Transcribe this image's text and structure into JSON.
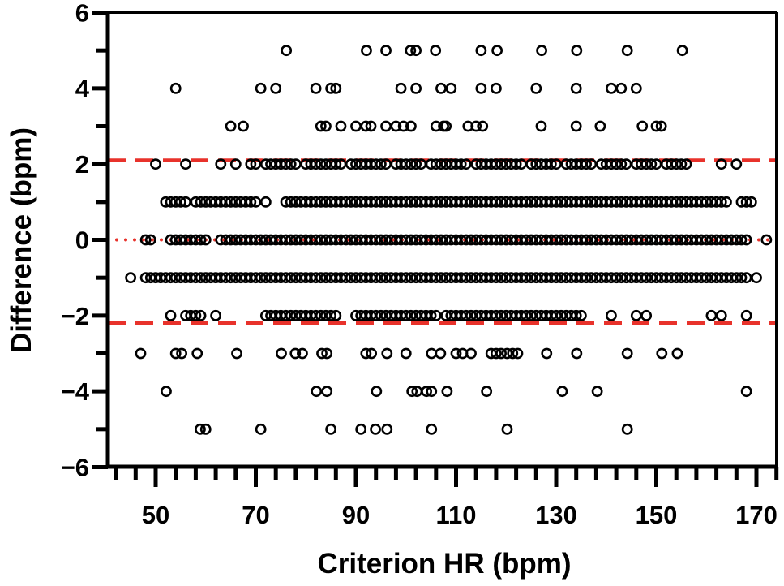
{
  "chart_data": {
    "type": "scatter",
    "title": "",
    "xlabel": "Criterion HR (bpm)",
    "ylabel": "Difference (bpm)",
    "xlim": [
      40.5,
      174
    ],
    "ylim": [
      -6,
      6
    ],
    "x_ticks": [
      50,
      70,
      90,
      110,
      130,
      150,
      170
    ],
    "x_tick_labels": [
      "50",
      "70",
      "90",
      "110",
      "130",
      "150",
      "170"
    ],
    "x_minor_tick_step": 4,
    "y_ticks": [
      -6,
      -4,
      -2,
      0,
      2,
      4,
      6
    ],
    "y_tick_labels": [
      "−6",
      "−4",
      "−2",
      "0",
      "2",
      "4",
      "6"
    ],
    "y_minor_tick_step": 1,
    "grid": false,
    "reference_lines": [
      {
        "name": "upper-limit-of-agreement",
        "y": 2.1,
        "style": "dashed",
        "color": "#e8322b"
      },
      {
        "name": "mean-bias",
        "y": 0,
        "style": "dotted",
        "color": "#e8322b"
      },
      {
        "name": "lower-limit-of-agreement",
        "y": -2.2,
        "style": "dashed",
        "color": "#e8322b"
      }
    ],
    "marker": {
      "shape": "open-circle",
      "color": "#000000"
    },
    "series": [
      {
        "difference": 5,
        "x": [
          76.1,
          92.1,
          96,
          100.9,
          102,
          105.9,
          115,
          118.2,
          127.1,
          134.1,
          144.2,
          155.2
        ]
      },
      {
        "difference": 4,
        "x": [
          54,
          71,
          74,
          82,
          85,
          86,
          99,
          102,
          107,
          109,
          115,
          118,
          126,
          134,
          141,
          143,
          146
        ]
      },
      {
        "difference": 3,
        "x": [
          65,
          67.5,
          83,
          84,
          87,
          90,
          92,
          93,
          96,
          98,
          99.5,
          101,
          106,
          107.5,
          108,
          112.4,
          114,
          115.3,
          127,
          134,
          138.8,
          147.2,
          150,
          151
        ]
      },
      {
        "difference": 2,
        "x": [
          50,
          56,
          63,
          66,
          69,
          70,
          72,
          73,
          74,
          75,
          76,
          77,
          78,
          80,
          81,
          82,
          83,
          84,
          85,
          86,
          87,
          89,
          90,
          91,
          92,
          93,
          94,
          95,
          96,
          98,
          99,
          100,
          101,
          102,
          103,
          105,
          106,
          107,
          108,
          109,
          110,
          111,
          112,
          114,
          115,
          116,
          117,
          118,
          119,
          120,
          121,
          122,
          123,
          125,
          126,
          127,
          128,
          129,
          130,
          132,
          133,
          134,
          135,
          136,
          137,
          139,
          140,
          141,
          142,
          143,
          144,
          146,
          147,
          148,
          149,
          150,
          152,
          153,
          154,
          155,
          156,
          163,
          166
        ]
      },
      {
        "difference": 1,
        "x": [
          52,
          53,
          54,
          55,
          56,
          58,
          59,
          60,
          61,
          62,
          63,
          64,
          65,
          66,
          67,
          68,
          69,
          70,
          72,
          76,
          77,
          78,
          79,
          80,
          81,
          82,
          83,
          84,
          85,
          86,
          87,
          88,
          89,
          90,
          91,
          92,
          93,
          94,
          95,
          96,
          97,
          98,
          99,
          100,
          101,
          102,
          103,
          104,
          105,
          106,
          107,
          108,
          109,
          110,
          111,
          112,
          113,
          114,
          115,
          116,
          117,
          118,
          119,
          120,
          121,
          122,
          123,
          124,
          125,
          126,
          127,
          128,
          129,
          130,
          131,
          132,
          133,
          134,
          135,
          136,
          137,
          138,
          139,
          140,
          141,
          142,
          143,
          144,
          145,
          146,
          147,
          148,
          149,
          150,
          151,
          152,
          153,
          154,
          155,
          156,
          157,
          158,
          159,
          160,
          161,
          162,
          163,
          164,
          167,
          168,
          169
        ]
      },
      {
        "difference": 0,
        "x": [
          48,
          49,
          53,
          54,
          55,
          56,
          57,
          58,
          59,
          60,
          63,
          64,
          65,
          66,
          67,
          68,
          69,
          70,
          71,
          72,
          73,
          74,
          75,
          76,
          77,
          78,
          79,
          80,
          81,
          82,
          83,
          84,
          85,
          86,
          87,
          88,
          89,
          90,
          91,
          92,
          93,
          94,
          95,
          96,
          97,
          98,
          99,
          100,
          101,
          102,
          103,
          104,
          105,
          106,
          107,
          108,
          109,
          110,
          111,
          112,
          113,
          114,
          115,
          116,
          117,
          118,
          119,
          120,
          121,
          122,
          123,
          124,
          125,
          126,
          127,
          128,
          129,
          130,
          131,
          132,
          133,
          134,
          135,
          136,
          137,
          138,
          139,
          140,
          141,
          142,
          143,
          144,
          145,
          146,
          147,
          148,
          149,
          150,
          151,
          152,
          153,
          154,
          155,
          156,
          157,
          158,
          159,
          160,
          161,
          162,
          163,
          164,
          165,
          166,
          167,
          168,
          172
        ]
      },
      {
        "difference": -1,
        "x": [
          45,
          48,
          49,
          50,
          51,
          52,
          53,
          54,
          55,
          56,
          57,
          58,
          59,
          60,
          61,
          62,
          63,
          64,
          65,
          66,
          67,
          68,
          69,
          70,
          71,
          72,
          73,
          74,
          75,
          76,
          77,
          78,
          79,
          80,
          81,
          82,
          83,
          84,
          85,
          86,
          87,
          88,
          89,
          90,
          91,
          92,
          93,
          94,
          95,
          96,
          97,
          98,
          99,
          100,
          101,
          102,
          103,
          104,
          105,
          106,
          107,
          108,
          109,
          110,
          111,
          112,
          113,
          114,
          115,
          116,
          117,
          118,
          119,
          120,
          121,
          122,
          123,
          124,
          125,
          126,
          127,
          128,
          129,
          130,
          131,
          132,
          133,
          134,
          135,
          136,
          137,
          138,
          139,
          140,
          141,
          142,
          143,
          144,
          145,
          146,
          147,
          148,
          149,
          150,
          151,
          152,
          153,
          154,
          155,
          156,
          157,
          158,
          159,
          160,
          161,
          162,
          163,
          164,
          165,
          166,
          167,
          168,
          170
        ]
      },
      {
        "difference": -2,
        "x": [
          53,
          56,
          57,
          58,
          59,
          62,
          72,
          73,
          74,
          75,
          76,
          77,
          78,
          79,
          80,
          81,
          82,
          83,
          84,
          85,
          86,
          90,
          91,
          92,
          93,
          94,
          95,
          96,
          97,
          98,
          99,
          100,
          101,
          102,
          103,
          104,
          105,
          106,
          108,
          109,
          110,
          111,
          112,
          113,
          114,
          115,
          116,
          117,
          118,
          119,
          120,
          121,
          122,
          123,
          124,
          125,
          126,
          127,
          128,
          129,
          130,
          131,
          132,
          133,
          134,
          135,
          141,
          146,
          148,
          161,
          163,
          168
        ]
      },
      {
        "difference": -3,
        "x": [
          47,
          54,
          55.2,
          58.3,
          66.2,
          75.1,
          77.9,
          79.3,
          83.2,
          84.2,
          92,
          93.1,
          96.2,
          100,
          105.1,
          106.9,
          110,
          111.3,
          113,
          117,
          118,
          119,
          120.2,
          121.3,
          122.3,
          128.1,
          134.1,
          144.2,
          151.1,
          154.2
        ]
      },
      {
        "difference": -4,
        "x": [
          52.1,
          82.1,
          84.2,
          94.1,
          101.2,
          102.2,
          104.1,
          105.1,
          108.2,
          116.1,
          131.2,
          138.2,
          168
        ]
      },
      {
        "difference": -5,
        "x": [
          58.9,
          60,
          71,
          85,
          91,
          93.9,
          96.2,
          105.1,
          120.2,
          144.2
        ]
      }
    ]
  }
}
